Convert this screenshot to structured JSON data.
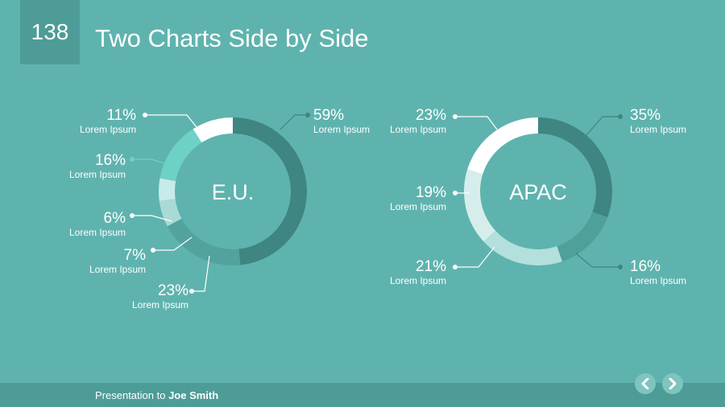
{
  "slide": {
    "number": "138",
    "title": "Two Charts Side by Side"
  },
  "footer": {
    "prefix": "Presentation to ",
    "name": "Joe Smith"
  },
  "nav": {
    "prev_icon": "chevron-left-icon",
    "next_icon": "chevron-right-icon"
  },
  "chart_data": [
    {
      "type": "pie",
      "center_label": "E.U.",
      "slices": [
        {
          "value": 59,
          "label": "59%",
          "sub": "Lorem Ipsum",
          "color": "#3f8581"
        },
        {
          "value": 23,
          "label": "23%",
          "sub": "Lorem Ipsum",
          "color": "#52a29e"
        },
        {
          "value": 7,
          "label": "7%",
          "sub": "Lorem Ipsum",
          "color": "#a9dad6"
        },
        {
          "value": 6,
          "label": "6%",
          "sub": "Lorem Ipsum",
          "color": "#c7ebe8"
        },
        {
          "value": 16,
          "label": "16%",
          "sub": "Lorem Ipsum",
          "color": "#6dd1c6"
        },
        {
          "value": 11,
          "label": "11%",
          "sub": "Lorem Ipsum",
          "color": "#ffffff"
        }
      ]
    },
    {
      "type": "pie",
      "center_label": "APAC",
      "slices": [
        {
          "value": 35,
          "label": "35%",
          "sub": "Lorem Ipsum",
          "color": "#3f8581"
        },
        {
          "value": 16,
          "label": "16%",
          "sub": "Lorem Ipsum",
          "color": "#4f9f9b"
        },
        {
          "value": 21,
          "label": "21%",
          "sub": "Lorem Ipsum",
          "color": "#b3e0dc"
        },
        {
          "value": 19,
          "label": "19%",
          "sub": "Lorem Ipsum",
          "color": "#d5eeec"
        },
        {
          "value": 23,
          "label": "23%",
          "sub": "Lorem Ipsum",
          "color": "#ffffff"
        }
      ]
    }
  ]
}
